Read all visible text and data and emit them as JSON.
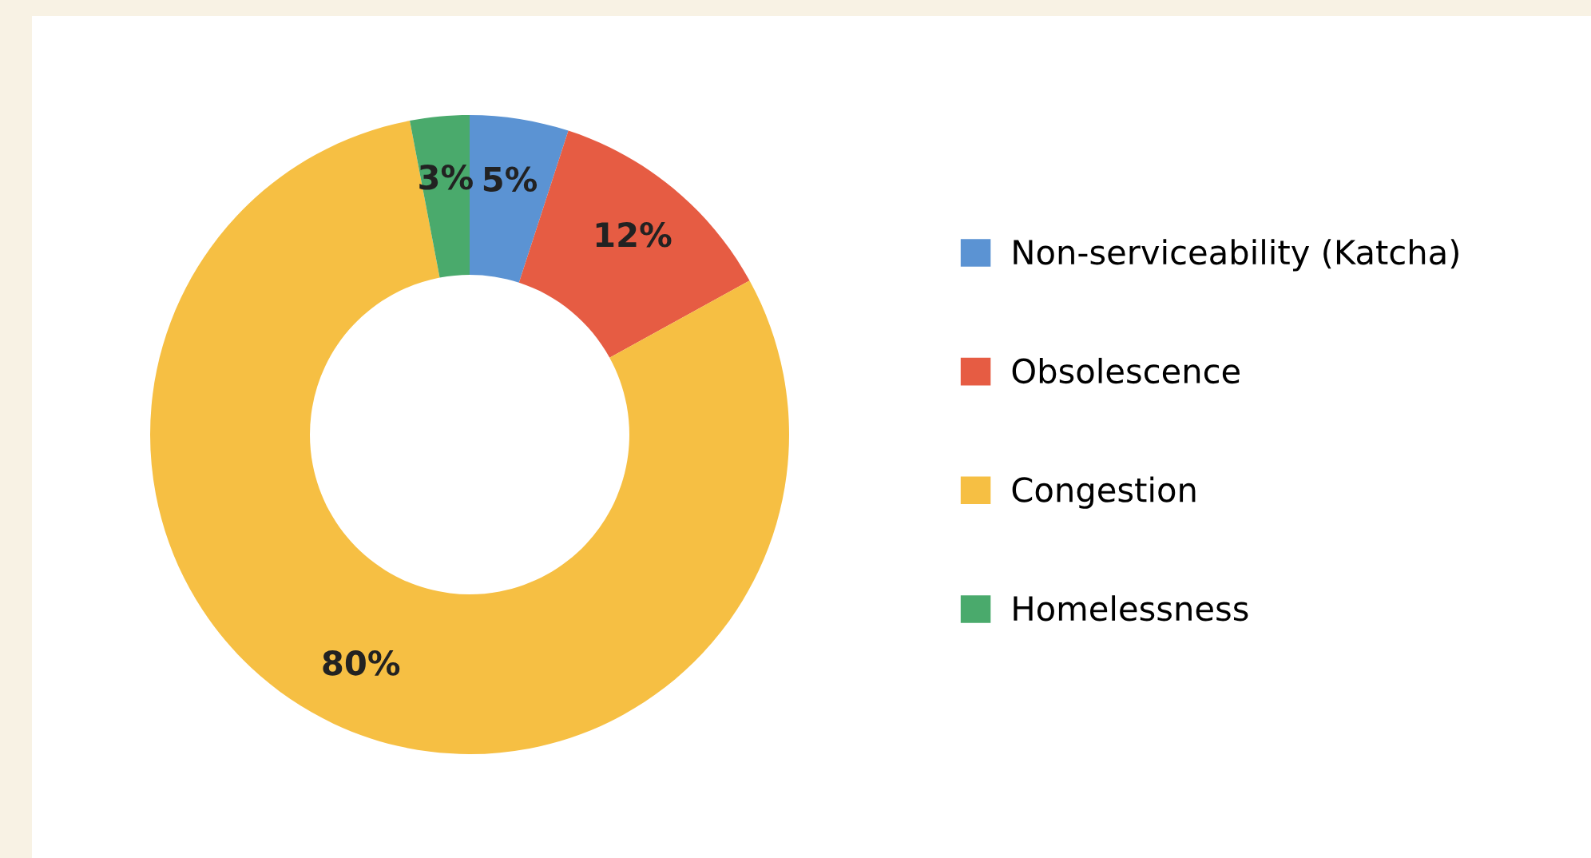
{
  "chart_data": {
    "type": "donut",
    "categories": [
      "Non-serviceability (Katcha)",
      "Obsolescence",
      "Congestion",
      "Homelessness"
    ],
    "values": [
      5,
      12,
      80,
      3
    ],
    "colors": [
      "#5b93d3",
      "#e65c43",
      "#f6bf43",
      "#4aaa6c"
    ],
    "value_labels": [
      "5%",
      "12%",
      "80%",
      "3%"
    ],
    "legend": "right"
  }
}
